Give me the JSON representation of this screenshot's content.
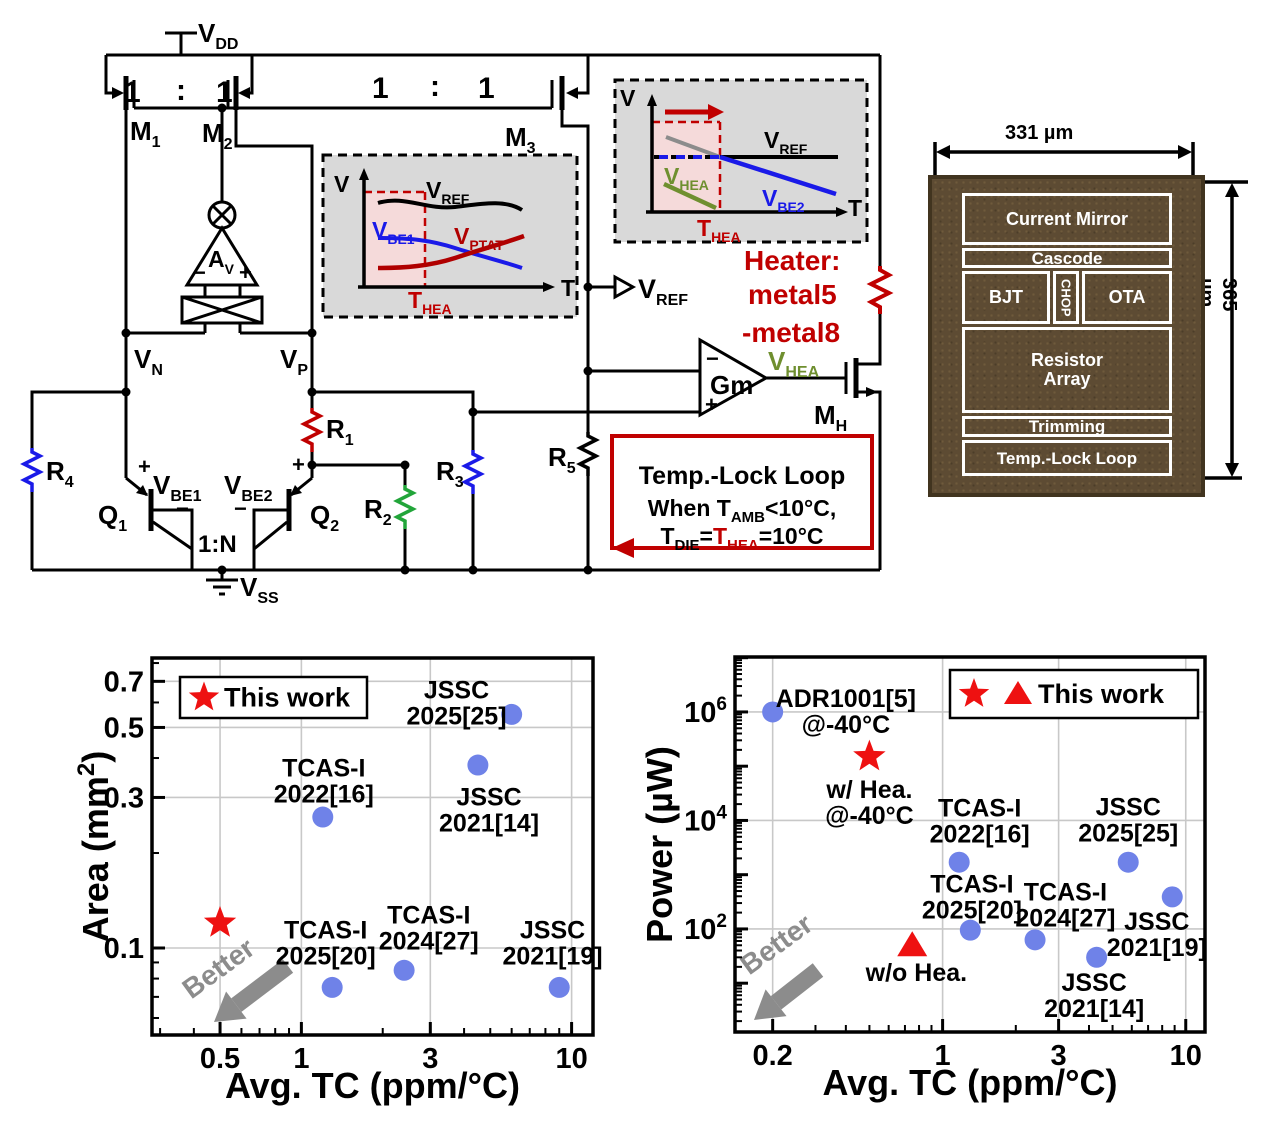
{
  "schematic": {
    "vdd": {
      "m": "V",
      "s": "DD"
    },
    "vss": {
      "m": "V",
      "s": "SS"
    },
    "mir1": {
      "a": "1",
      "b": ":",
      "c": "1"
    },
    "mir2": {
      "a": "1",
      "b": ":",
      "c": "1"
    },
    "m1": {
      "m": "M",
      "s": "1"
    },
    "m2": {
      "m": "M",
      "s": "2"
    },
    "m3": {
      "m": "M",
      "s": "3"
    },
    "mh": {
      "m": "M",
      "s": "H"
    },
    "av": {
      "m": "A",
      "s": "V"
    },
    "amp_minus": "−",
    "amp_plus": "+",
    "vn": {
      "m": "V",
      "s": "N"
    },
    "vp": {
      "m": "V",
      "s": "P"
    },
    "r1": {
      "m": "R",
      "s": "1"
    },
    "r2": {
      "m": "R",
      "s": "2"
    },
    "r3": {
      "m": "R",
      "s": "3"
    },
    "r4": {
      "m": "R",
      "s": "4"
    },
    "r5": {
      "m": "R",
      "s": "5"
    },
    "q1": {
      "m": "Q",
      "s": "1"
    },
    "q2": {
      "m": "Q",
      "s": "2"
    },
    "vbe1": {
      "p": "+",
      "m": "V",
      "s": "BE1",
      "n": "−"
    },
    "vbe2": {
      "p": "+",
      "m": "V",
      "s": "BE2",
      "n": "−"
    },
    "ratio": "1:N",
    "vref": {
      "m": "V",
      "s": "REF"
    },
    "gm": {
      "minus": "−",
      "m": "Gm",
      "plus": "+"
    },
    "vhea": {
      "m": "V",
      "s": "HEA"
    },
    "heater": [
      "Heater:",
      "metal5",
      "-metal8"
    ],
    "tll": {
      "l1": "Temp.-Lock Loop",
      "l2a": "When T",
      "l2b": "AMB",
      "l2c": "<10°C,",
      "l3a": "T",
      "l3b": "DIE",
      "l3c": "=",
      "l3d": "T",
      "l3e": "HEA",
      "l3f": "=10°C"
    },
    "inset1": {
      "v": "V",
      "t": "T",
      "vref": {
        "m": "V",
        "s": "REF"
      },
      "vbe1": {
        "m": "V",
        "s": "BE1"
      },
      "vptat": {
        "m": "V",
        "s": "PTAT"
      },
      "thea": {
        "m": "T",
        "s": "HEA"
      }
    },
    "inset2": {
      "v": "V",
      "t": "T",
      "vref": {
        "m": "V",
        "s": "REF"
      },
      "vhea": {
        "m": "V",
        "s": "HEA"
      },
      "vbe2": {
        "m": "V",
        "s": "BE2"
      },
      "thea": {
        "m": "T",
        "s": "HEA"
      }
    }
  },
  "chip": {
    "width_label": "331 µm",
    "height_label": "365 µm",
    "blocks": [
      "Current Mirror",
      "Cascode",
      "BJT",
      "CHOP",
      "OTA",
      "Resistor Array",
      "Trimming",
      "Temp.-Lock Loop"
    ]
  },
  "chart_data": [
    {
      "type": "scatter",
      "xscale": "log",
      "yscale": "log",
      "xlabel": "Avg. TC (ppm/°C)",
      "ylabel_parts": [
        {
          "t": "Area (mm"
        },
        {
          "t": "2",
          "sup": true
        },
        {
          "t": ")"
        }
      ],
      "xlim": [
        0.28,
        12
      ],
      "ylim": [
        0.053,
        0.83
      ],
      "grid": true,
      "legend": {
        "label": "This work",
        "markers": [
          "star"
        ]
      },
      "better": "Better",
      "xticks": [
        {
          "v": 0.5,
          "label": "0.5"
        },
        {
          "v": 1,
          "label": "1"
        },
        {
          "v": 3,
          "label": "3"
        },
        {
          "v": 10,
          "label": "10"
        }
      ],
      "yticks": [
        {
          "v": 0.1,
          "label": "0.1"
        },
        {
          "v": 0.3,
          "label": "0.3"
        },
        {
          "v": 0.5,
          "label": "0.5"
        },
        {
          "v": 0.7,
          "label": "0.7"
        }
      ],
      "points": [
        {
          "name": "This work",
          "marker": "star",
          "x": 0.5,
          "y": 0.12
        },
        {
          "name": "TCAS-I 2022[16]",
          "marker": "circle",
          "x": 1.2,
          "y": 0.26
        },
        {
          "name": "JSSC 2025[25]",
          "marker": "circle",
          "x": 6.0,
          "y": 0.55
        },
        {
          "name": "JSSC 2021[14]",
          "marker": "circle",
          "x": 4.5,
          "y": 0.38
        },
        {
          "name": "TCAS-I 2025[20]",
          "marker": "circle",
          "x": 1.3,
          "y": 0.075
        },
        {
          "name": "TCAS-I 2024[27]",
          "marker": "circle",
          "x": 2.4,
          "y": 0.085
        },
        {
          "name": "JSSC 2021[19]",
          "marker": "circle",
          "x": 9.0,
          "y": 0.075
        }
      ],
      "annotations": [
        {
          "lines": [
            "JSSC",
            "2025[25]"
          ],
          "x": 3.75,
          "y": 0.6
        },
        {
          "lines": [
            "TCAS-I",
            "2022[16]"
          ],
          "x": 1.21,
          "y": 0.34
        },
        {
          "lines": [
            "JSSC",
            "2021[14]"
          ],
          "x": 4.95,
          "y": 0.275
        },
        {
          "lines": [
            "TCAS-I",
            "2025[20]"
          ],
          "x": 1.23,
          "y": 0.104
        },
        {
          "lines": [
            "TCAS-I",
            "2024[27]"
          ],
          "x": 2.96,
          "y": 0.116
        },
        {
          "lines": [
            "JSSC",
            "2021[19]"
          ],
          "x": 8.5,
          "y": 0.104
        }
      ],
      "colors": {
        "point": "#6f82e8",
        "accent": "#ee1111",
        "better": "#8c8c8c"
      }
    },
    {
      "type": "scatter",
      "xscale": "log",
      "yscale": "log",
      "xlabel": "Avg. TC (ppm/°C)",
      "ylabel_parts": [
        {
          "t": "Power (µW)"
        }
      ],
      "xlim": [
        0.14,
        12
      ],
      "ylim": [
        1.26,
        10300000
      ],
      "grid": true,
      "legend": {
        "label": "This work",
        "markers": [
          "star",
          "triangle"
        ]
      },
      "better": "Better",
      "xticks": [
        {
          "v": 0.2,
          "label": "0.2"
        },
        {
          "v": 1,
          "label": "1"
        },
        {
          "v": 3,
          "label": "3"
        },
        {
          "v": 10,
          "label": "10"
        }
      ],
      "yticks": [
        {
          "v": 100,
          "label": "10",
          "exp": "2"
        },
        {
          "v": 10000,
          "label": "10",
          "exp": "4"
        },
        {
          "v": 1000000,
          "label": "10",
          "exp": "6"
        }
      ],
      "points": [
        {
          "name": "ADR1001[5] @-40°C",
          "marker": "circle",
          "x": 0.2,
          "y": 1000000
        },
        {
          "name": "This work w/ Hea. @-40°C",
          "marker": "star",
          "x": 0.5,
          "y": 150000
        },
        {
          "name": "This work w/o Hea.",
          "marker": "triangle",
          "x": 0.75,
          "y": 50
        },
        {
          "name": "TCAS-I 2022[16]",
          "marker": "circle",
          "x": 1.17,
          "y": 1700
        },
        {
          "name": "TCAS-I 2025[20]",
          "marker": "circle",
          "x": 1.3,
          "y": 95
        },
        {
          "name": "TCAS-I 2024[27]",
          "marker": "circle",
          "x": 2.4,
          "y": 63
        },
        {
          "name": "JSSC 2021[14]",
          "marker": "circle",
          "x": 4.3,
          "y": 30
        },
        {
          "name": "JSSC 2025[25]",
          "marker": "circle",
          "x": 5.8,
          "y": 1700
        },
        {
          "name": "JSSC 2021[19]",
          "marker": "circle",
          "x": 8.8,
          "y": 390
        }
      ],
      "annotations": [
        {
          "lines": [
            "ADR1001[5]",
            "@-40°C"
          ],
          "x": 0.4,
          "y": 1050000
        },
        {
          "lines": [
            "w/ Hea.",
            "@-40°C"
          ],
          "x": 0.5,
          "y": 22000
        },
        {
          "lines": [
            "w/o Hea."
          ],
          "x": 0.78,
          "y": 16
        },
        {
          "lines": [
            "TCAS-I",
            "2022[16]"
          ],
          "x": 1.42,
          "y": 10000
        },
        {
          "lines": [
            "TCAS-I",
            "2025[20]"
          ],
          "x": 1.32,
          "y": 400
        },
        {
          "lines": [
            "TCAS-I",
            "2024[27]"
          ],
          "x": 3.2,
          "y": 280
        },
        {
          "lines": [
            "JSSC",
            "2025[25]"
          ],
          "x": 5.8,
          "y": 10500
        },
        {
          "lines": [
            "JSSC",
            "2021[19]"
          ],
          "x": 7.6,
          "y": 81
        },
        {
          "lines": [
            "JSSC",
            "2021[14]"
          ],
          "x": 4.2,
          "y": 6
        }
      ],
      "colors": {
        "point": "#6f82e8",
        "accent": "#ee1111",
        "better": "#8c8c8c"
      }
    }
  ]
}
